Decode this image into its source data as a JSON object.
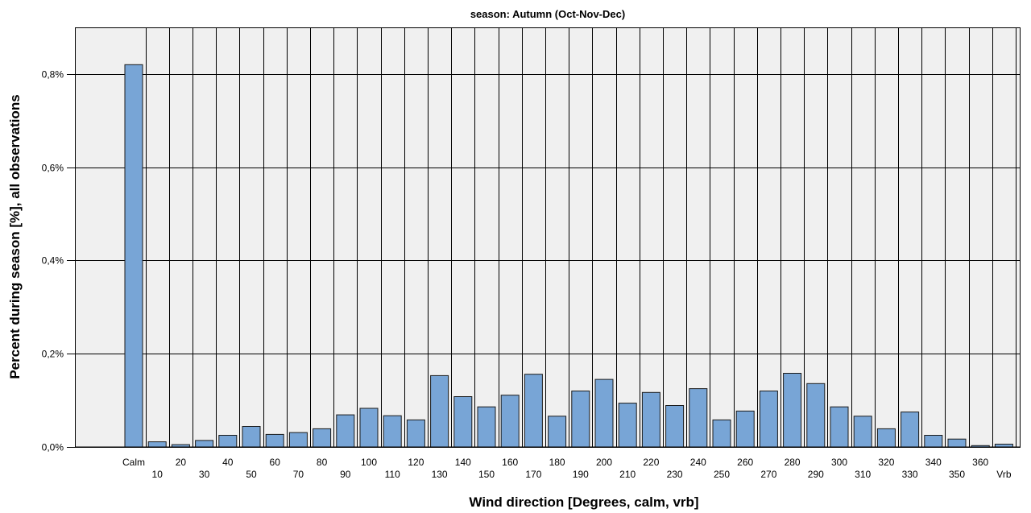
{
  "chart_data": {
    "type": "bar",
    "title": "season: Autumn (Oct-Nov-Dec)",
    "xlabel": "Wind direction [Degrees, calm, vrb]",
    "ylabel": "Percent during season [%], all observations",
    "ylim": [
      0,
      0.9
    ],
    "yticks": [
      0,
      0.2,
      0.4,
      0.6,
      0.8
    ],
    "ytick_labels": [
      "0,0%",
      "0,2%",
      "0,4%",
      "0,6%",
      "0,8%"
    ],
    "grid": true,
    "categories": [
      "Calm",
      "10",
      "20",
      "30",
      "40",
      "50",
      "60",
      "70",
      "80",
      "90",
      "100",
      "110",
      "120",
      "130",
      "140",
      "150",
      "160",
      "170",
      "180",
      "190",
      "200",
      "210",
      "220",
      "230",
      "240",
      "250",
      "260",
      "270",
      "280",
      "290",
      "300",
      "310",
      "320",
      "330",
      "340",
      "350",
      "360",
      "Vrb"
    ],
    "values": [
      0.82,
      0.011,
      0.005,
      0.014,
      0.025,
      0.044,
      0.027,
      0.031,
      0.039,
      0.069,
      0.083,
      0.067,
      0.058,
      0.153,
      0.108,
      0.086,
      0.111,
      0.156,
      0.066,
      0.12,
      0.145,
      0.094,
      0.117,
      0.089,
      0.125,
      0.058,
      0.077,
      0.12,
      0.158,
      0.136,
      0.086,
      0.066,
      0.039,
      0.075,
      0.025,
      0.017,
      0.003,
      0.006
    ]
  }
}
